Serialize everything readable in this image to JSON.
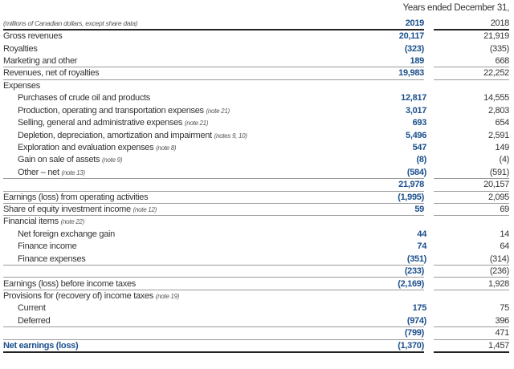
{
  "header": {
    "period": "Years ended December 31,",
    "units": "(millions of Canadian dollars, except share data)",
    "year_current": "2019",
    "year_prior": "2018"
  },
  "rows": [
    {
      "label": "Gross revenues",
      "note": "",
      "indent": false,
      "v2019": "20,117",
      "v2018": "21,919",
      "line": false
    },
    {
      "label": "Royalties",
      "note": "",
      "indent": false,
      "v2019": "(323)",
      "v2018": "(335)",
      "line": false
    },
    {
      "label": "Marketing and other",
      "note": "",
      "indent": false,
      "v2019": "189",
      "v2018": "668",
      "line": true
    },
    {
      "label": "Revenues, net of royalties",
      "note": "",
      "indent": false,
      "v2019": "19,983",
      "v2018": "22,252",
      "line": true
    },
    {
      "label": "Expenses",
      "note": "",
      "indent": false,
      "v2019": "",
      "v2018": "",
      "line": false
    },
    {
      "label": "Purchases of crude oil and products",
      "note": "",
      "indent": true,
      "v2019": "12,817",
      "v2018": "14,555",
      "line": false
    },
    {
      "label": "Production, operating and transportation expenses",
      "note": "(note 21)",
      "indent": true,
      "v2019": "3,017",
      "v2018": "2,803",
      "line": false
    },
    {
      "label": "Selling, general and administrative expenses",
      "note": "(note 21)",
      "indent": true,
      "v2019": "693",
      "v2018": "654",
      "line": false
    },
    {
      "label": "Depletion, depreciation, amortization and impairment",
      "note": "(notes 9, 10)",
      "indent": true,
      "v2019": "5,496",
      "v2018": "2,591",
      "line": false
    },
    {
      "label": "Exploration and evaluation expenses",
      "note": "(note 8)",
      "indent": true,
      "v2019": "547",
      "v2018": "149",
      "line": false
    },
    {
      "label": "Gain on sale of assets",
      "note": "(note 9)",
      "indent": true,
      "v2019": "(8)",
      "v2018": "(4)",
      "line": false
    },
    {
      "label": "Other – net",
      "note": "(note 13)",
      "indent": true,
      "v2019": "(584)",
      "v2018": "(591)",
      "line": true
    },
    {
      "label": "",
      "note": "",
      "indent": false,
      "v2019": "21,978",
      "v2018": "20,157",
      "line": true
    },
    {
      "label": "Earnings (loss) from operating activities",
      "note": "",
      "indent": false,
      "v2019": "(1,995)",
      "v2018": "2,095",
      "line": true
    },
    {
      "label": "Share of equity investment income",
      "note": "(note 12)",
      "indent": false,
      "v2019": "59",
      "v2018": "69",
      "line": true
    },
    {
      "label": "Financial items",
      "note": "(note 22)",
      "indent": false,
      "v2019": "",
      "v2018": "",
      "line": false
    },
    {
      "label": "Net foreign exchange gain",
      "note": "",
      "indent": true,
      "v2019": "44",
      "v2018": "14",
      "line": false
    },
    {
      "label": "Finance income",
      "note": "",
      "indent": true,
      "v2019": "74",
      "v2018": "64",
      "line": false
    },
    {
      "label": "Finance expenses",
      "note": "",
      "indent": true,
      "v2019": "(351)",
      "v2018": "(314)",
      "line": true
    },
    {
      "label": "",
      "note": "",
      "indent": false,
      "v2019": "(233)",
      "v2018": "(236)",
      "line": true
    },
    {
      "label": "Earnings (loss) before income taxes",
      "note": "",
      "indent": false,
      "v2019": "(2,169)",
      "v2018": "1,928",
      "line": true
    },
    {
      "label": "Provisions for (recovery of) income taxes",
      "note": "(note 19)",
      "indent": false,
      "v2019": "",
      "v2018": "",
      "line": false
    },
    {
      "label": "Current",
      "note": "",
      "indent": true,
      "v2019": "175",
      "v2018": "75",
      "line": false
    },
    {
      "label": "Deferred",
      "note": "",
      "indent": true,
      "v2019": "(974)",
      "v2018": "396",
      "line": true
    },
    {
      "label": "",
      "note": "",
      "indent": false,
      "v2019": "(799)",
      "v2018": "471",
      "line": true
    },
    {
      "label": "Net earnings (loss)",
      "note": "",
      "indent": false,
      "v2019": "(1,370)",
      "v2018": "1,457",
      "line": "thick",
      "bold": true
    }
  ],
  "colors": {
    "accent": "#1b4f8c"
  }
}
